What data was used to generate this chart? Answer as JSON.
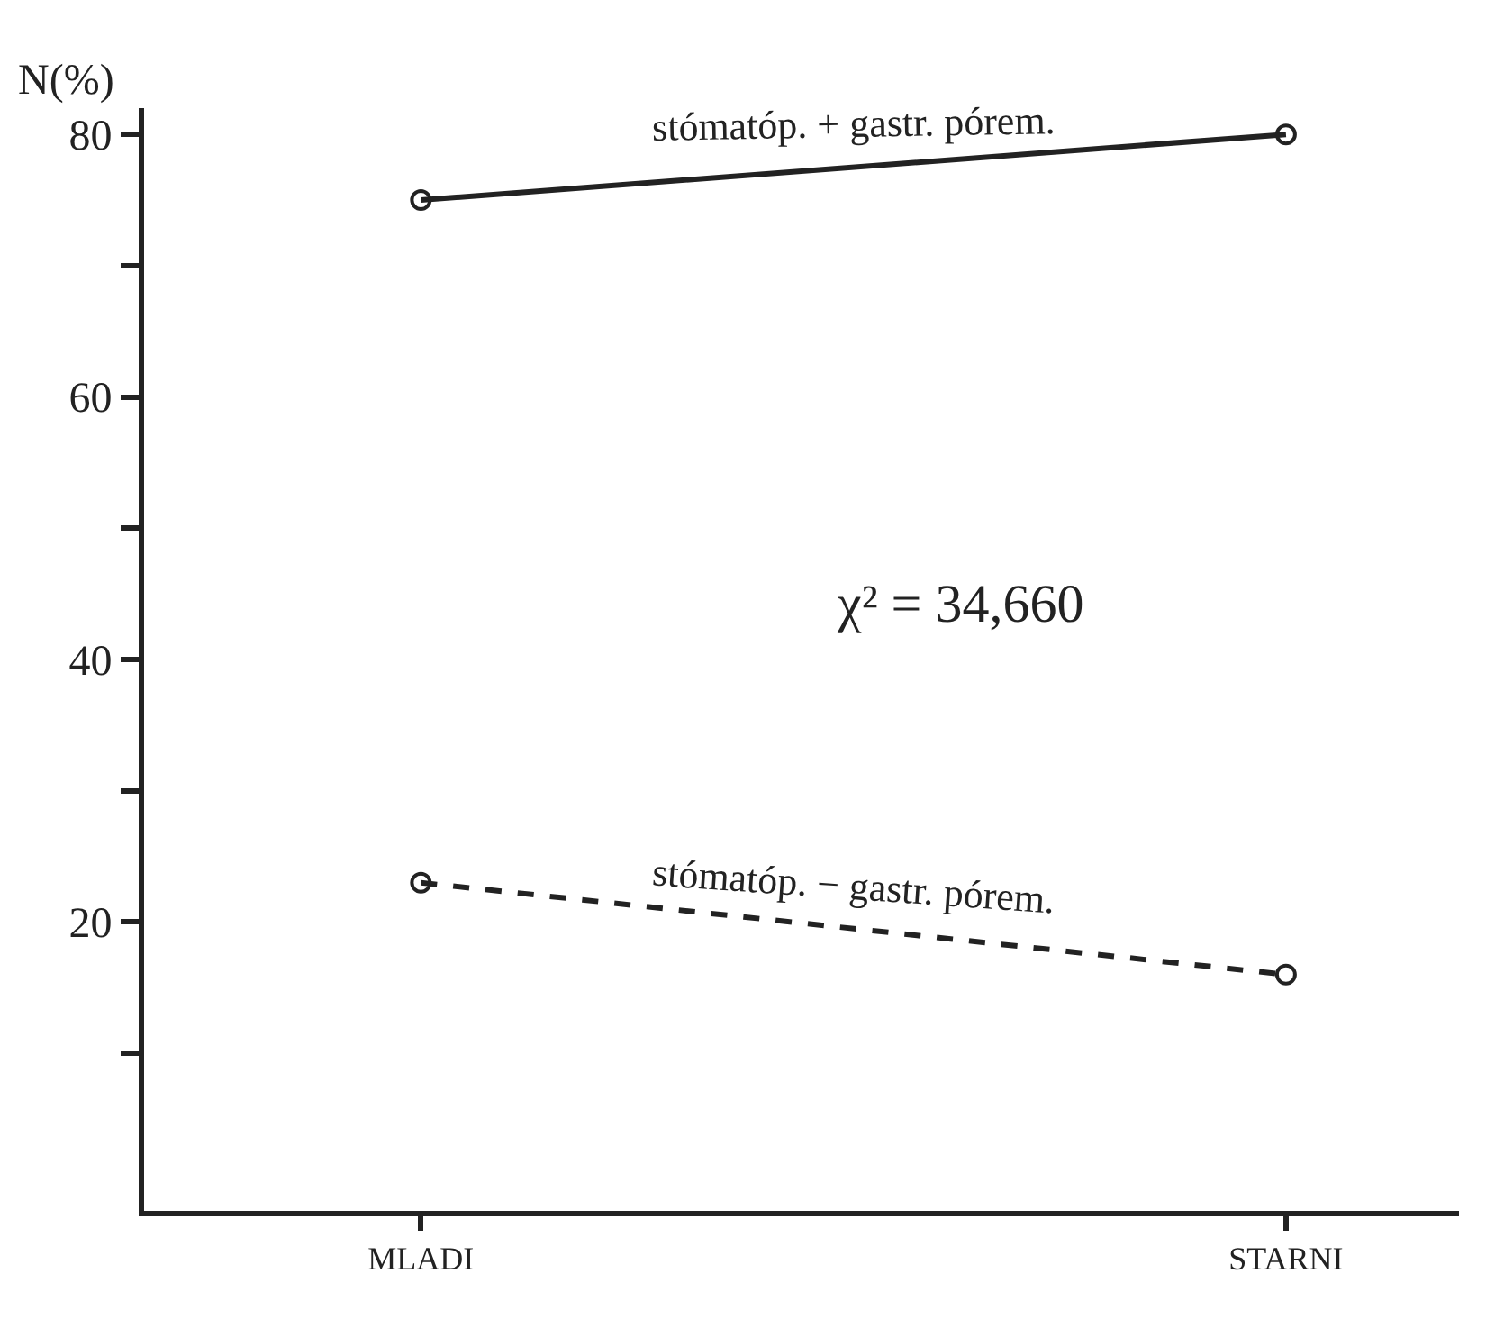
{
  "chart_data": {
    "type": "line",
    "ylabel": "N(%)",
    "categories": [
      "MLADI",
      "STARNI"
    ],
    "series": [
      {
        "name": "stómatóp. + gastr. pórem.",
        "color": "#222222",
        "values": [
          75,
          80
        ],
        "line_style": "solid"
      },
      {
        "name": "stómatóp. − gastr. pórem.",
        "color": "#222222",
        "values": [
          23,
          16
        ],
        "line_style": "dashed"
      }
    ],
    "marker": "circle",
    "legend": false,
    "ylim": [
      -2,
      82
    ],
    "yticks": [
      {
        "value": 10,
        "label": null
      },
      20,
      {
        "value": 30,
        "label": null
      },
      40,
      {
        "value": 50,
        "label": null
      },
      60,
      {
        "value": 70,
        "label": null
      },
      80
    ],
    "annotations": [
      "χ² = 34,660"
    ]
  }
}
